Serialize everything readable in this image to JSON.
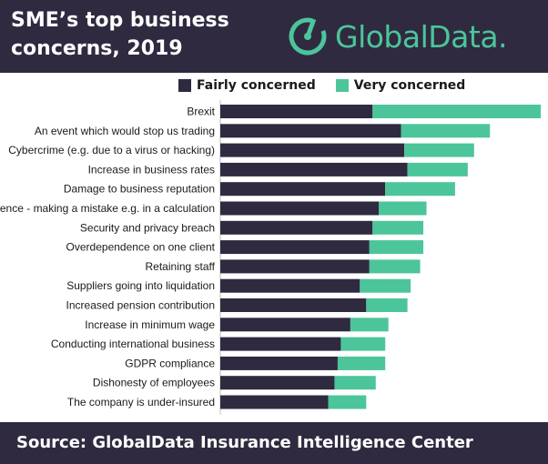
{
  "header": {
    "title": "SME’s top business concerns, 2019",
    "brand": "GlobalData."
  },
  "footer": {
    "source": "Source: GlobalData Insurance Intelligence Center"
  },
  "colors": {
    "background_dark": "#2f2a40",
    "fairly": "#2f2a40",
    "very": "#4cc59a",
    "brand": "#4cc59a"
  },
  "icons": {
    "brand_logo": "globaldata-logo-icon"
  },
  "chart_data": {
    "type": "bar",
    "orientation": "horizontal",
    "stacked": true,
    "title": "SME’s top business concerns, 2019",
    "legend_position": "top",
    "grid": false,
    "categories": [
      "Brexit",
      "An event which would stop us trading",
      "Cybercrime (e.g. due to a virus or hacking)",
      "Increase in business rates",
      "Damage to business reputation",
      "Negligence - making a mistake e.g. in a calculation",
      "Security and privacy breach",
      "Overdependence on one client",
      "Retaining staff",
      "Suppliers going into liquidation",
      "Increased pension contribution",
      "Increase in minimum wage",
      "Conducting international business",
      "GDPR compliance",
      "Dishonesty of employees",
      "The company is under-insured"
    ],
    "series": [
      {
        "name": "Fairly concerned",
        "color": "#2f2a40",
        "values": [
          48,
          57,
          58,
          59,
          52,
          50,
          48,
          47,
          47,
          44,
          46,
          41,
          38,
          37,
          36,
          34
        ]
      },
      {
        "name": "Very concerned",
        "color": "#4cc59a",
        "values": [
          53,
          28,
          22,
          19,
          22,
          15,
          16,
          17,
          16,
          16,
          13,
          12,
          14,
          15,
          13,
          12
        ]
      }
    ],
    "xlim": [
      0,
      101
    ]
  }
}
